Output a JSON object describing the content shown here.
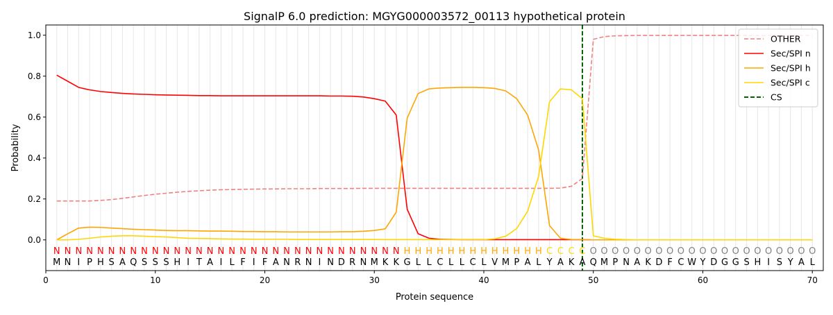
{
  "chart_data": {
    "type": "line",
    "title": "SignalP 6.0 prediction: MGYG000003572_00113 hypothetical protein",
    "xlabel": "Protein sequence",
    "ylabel": "Probability",
    "xlim": [
      0,
      71
    ],
    "ylim": [
      -0.15,
      1.05
    ],
    "x_ticks": [
      0,
      10,
      20,
      30,
      40,
      50,
      60,
      70
    ],
    "y_ticks": [
      0.0,
      0.2,
      0.4,
      0.6,
      0.8,
      1.0
    ],
    "x_tick_labels": [
      "0",
      "10",
      "20",
      "30",
      "40",
      "50",
      "60",
      "70"
    ],
    "y_tick_labels": [
      "0.0",
      "0.2",
      "0.4",
      "0.6",
      "0.8",
      "1.0"
    ],
    "grid": "vertical lines at each residue",
    "legend_position": "top-right",
    "sequence": [
      "M",
      "N",
      "I",
      "P",
      "H",
      "S",
      "A",
      "Q",
      "S",
      "S",
      "S",
      "H",
      "I",
      "T",
      "A",
      "I",
      "L",
      "F",
      "I",
      "F",
      "A",
      "N",
      "R",
      "N",
      "I",
      "N",
      "D",
      "R",
      "N",
      "M",
      "K",
      "K",
      "G",
      "L",
      "L",
      "C",
      "L",
      "L",
      "C",
      "L",
      "V",
      "M",
      "P",
      "A",
      "L",
      "Y",
      "A",
      "K",
      "A",
      "Q",
      "M",
      "P",
      "N",
      "A",
      "K",
      "D",
      "F",
      "C",
      "W",
      "Y",
      "D",
      "G",
      "G",
      "S",
      "H",
      "I",
      "S",
      "Y",
      "A",
      "L"
    ],
    "region_labels": [
      "N",
      "N",
      "N",
      "N",
      "N",
      "N",
      "N",
      "N",
      "N",
      "N",
      "N",
      "N",
      "N",
      "N",
      "N",
      "N",
      "N",
      "N",
      "N",
      "N",
      "N",
      "N",
      "N",
      "N",
      "N",
      "N",
      "N",
      "N",
      "N",
      "N",
      "N",
      "N",
      "H",
      "H",
      "H",
      "H",
      "H",
      "H",
      "H",
      "H",
      "H",
      "H",
      "H",
      "H",
      "H",
      "C",
      "C",
      "C",
      "C",
      "O",
      "O",
      "O",
      "O",
      "O",
      "O",
      "O",
      "O",
      "O",
      "O",
      "O",
      "O",
      "O",
      "O",
      "O",
      "O",
      "O",
      "O",
      "O",
      "O",
      "O"
    ],
    "region_colors": {
      "N": "#ff0000",
      "H": "#ffa500",
      "C": "#ffd700",
      "O": "#808080"
    },
    "cleavage_site": 49,
    "series": [
      {
        "name": "OTHER",
        "color": "#f08080",
        "style": "dashed",
        "values": [
          0.19,
          0.19,
          0.19,
          0.19,
          0.193,
          0.197,
          0.203,
          0.21,
          0.217,
          0.223,
          0.228,
          0.233,
          0.237,
          0.24,
          0.243,
          0.245,
          0.246,
          0.247,
          0.248,
          0.249,
          0.249,
          0.25,
          0.25,
          0.25,
          0.251,
          0.251,
          0.251,
          0.251,
          0.252,
          0.252,
          0.252,
          0.252,
          0.252,
          0.252,
          0.252,
          0.252,
          0.252,
          0.252,
          0.252,
          0.252,
          0.252,
          0.252,
          0.252,
          0.252,
          0.252,
          0.252,
          0.253,
          0.262,
          0.3,
          0.98,
          0.993,
          0.997,
          0.998,
          0.999,
          0.999,
          0.999,
          0.999,
          0.999,
          0.999,
          0.999,
          0.999,
          0.999,
          0.999,
          0.999,
          0.999,
          0.999,
          0.999,
          0.999,
          0.999,
          0.999
        ]
      },
      {
        "name": "Sec/SPI n",
        "color": "#ff0000",
        "style": "solid",
        "values": [
          0.805,
          0.775,
          0.745,
          0.733,
          0.725,
          0.72,
          0.716,
          0.713,
          0.711,
          0.709,
          0.708,
          0.707,
          0.706,
          0.705,
          0.705,
          0.704,
          0.704,
          0.704,
          0.704,
          0.704,
          0.704,
          0.704,
          0.704,
          0.704,
          0.704,
          0.703,
          0.703,
          0.702,
          0.698,
          0.69,
          0.678,
          0.61,
          0.15,
          0.03,
          0.008,
          0.003,
          0.002,
          0.001,
          0.001,
          0.001,
          0.001,
          0.001,
          0.001,
          0.001,
          0.001,
          0.001,
          0.001,
          0.001,
          0.001,
          0.0,
          0.0,
          0.0,
          0.0,
          0.0,
          0.0,
          0.0,
          0.0,
          0.0,
          0.0,
          0.0,
          0.0,
          0.0,
          0.0,
          0.0,
          0.0,
          0.0,
          0.0,
          0.0,
          0.0,
          0.0
        ]
      },
      {
        "name": "Sec/SPI h",
        "color": "#ffa500",
        "style": "solid",
        "values": [
          0.0,
          0.03,
          0.058,
          0.062,
          0.061,
          0.058,
          0.055,
          0.052,
          0.05,
          0.048,
          0.046,
          0.045,
          0.045,
          0.044,
          0.043,
          0.043,
          0.042,
          0.041,
          0.041,
          0.04,
          0.04,
          0.039,
          0.039,
          0.039,
          0.039,
          0.039,
          0.04,
          0.04,
          0.042,
          0.046,
          0.054,
          0.135,
          0.595,
          0.715,
          0.738,
          0.742,
          0.744,
          0.745,
          0.745,
          0.744,
          0.74,
          0.728,
          0.69,
          0.61,
          0.44,
          0.07,
          0.008,
          0.002,
          0.001,
          0.0,
          0.0,
          0.0,
          0.0,
          0.0,
          0.0,
          0.0,
          0.0,
          0.0,
          0.0,
          0.0,
          0.0,
          0.0,
          0.0,
          0.0,
          0.0,
          0.0,
          0.0,
          0.0,
          0.0,
          0.0
        ]
      },
      {
        "name": "Sec/SPI c",
        "color": "#ffd700",
        "style": "solid",
        "values": [
          0.0,
          0.0,
          0.003,
          0.008,
          0.014,
          0.018,
          0.02,
          0.02,
          0.018,
          0.016,
          0.014,
          0.011,
          0.008,
          0.007,
          0.006,
          0.005,
          0.004,
          0.004,
          0.003,
          0.003,
          0.003,
          0.003,
          0.002,
          0.002,
          0.002,
          0.002,
          0.002,
          0.002,
          0.002,
          0.002,
          0.001,
          0.001,
          0.001,
          0.001,
          0.001,
          0.001,
          0.001,
          0.001,
          0.001,
          0.001,
          0.005,
          0.018,
          0.055,
          0.14,
          0.31,
          0.675,
          0.738,
          0.733,
          0.69,
          0.02,
          0.008,
          0.003,
          0.001,
          0.0,
          0.0,
          0.0,
          0.0,
          0.0,
          0.0,
          0.0,
          0.0,
          0.0,
          0.0,
          0.0,
          0.0,
          0.0,
          0.0,
          0.0,
          0.0,
          0.0
        ]
      },
      {
        "name": "CS",
        "color": "#006400",
        "style": "dashed",
        "values": []
      }
    ]
  }
}
